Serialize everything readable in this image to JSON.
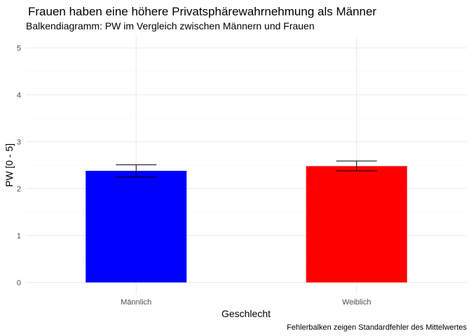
{
  "chart_data": {
    "type": "bar",
    "title": "Frauen haben eine höhere Privatsphärewahrnehmung als Männer",
    "subtitle": "Balkendiagramm: PW im Vergleich zwischen Männern und Frauen",
    "xlabel": "Geschlecht",
    "ylabel": "PW [0 - 5]",
    "caption": "Fehlerbalken zeigen Standardfehler des Mittelwertes",
    "categories": [
      "Männlich",
      "Weiblich"
    ],
    "values": [
      2.38,
      2.48
    ],
    "error_low": [
      2.25,
      2.38
    ],
    "error_high": [
      2.51,
      2.59
    ],
    "colors": [
      "#0000FF",
      "#FF0000"
    ],
    "ylim": [
      0,
      5
    ],
    "yticks": [
      "0",
      "1",
      "2",
      "3",
      "4",
      "5"
    ],
    "grid": true,
    "legend": "none"
  }
}
